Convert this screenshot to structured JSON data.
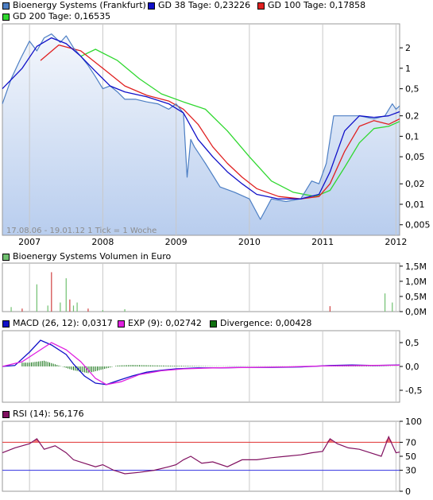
{
  "panels": {
    "price": {
      "legend": [
        {
          "label": "Bioenergy Systems (Frankfurt)",
          "color": "#4d7fc4"
        },
        {
          "label": "GD 38 Tage: 0,23226",
          "color": "#1010c8"
        },
        {
          "label": "GD 100 Tage: 0,17858",
          "color": "#e02020"
        },
        {
          "label": "GD 200 Tage: 0,16535",
          "color": "#30d830"
        }
      ],
      "y_ticks": [
        "2",
        "1",
        "0,5",
        "0,2",
        "0,1",
        "0,05",
        "0,02",
        "0,01",
        "0,005"
      ],
      "x_ticks": [
        "2007",
        "2008",
        "2009",
        "2010",
        "2011",
        "2012"
      ],
      "note": "17.08.06 - 19.01.12   1 Tick = 1 Woche"
    },
    "volume": {
      "legend": [
        {
          "label": "Bioenergy Systems Volumen in Euro",
          "color": "#70c070"
        }
      ],
      "y_ticks": [
        "1,5M",
        "1,0M",
        "0,5M",
        "0,0M"
      ]
    },
    "macd": {
      "legend": [
        {
          "label": "MACD (26, 12): 0,0317",
          "color": "#1010c8"
        },
        {
          "label": "EXP (9): 0,02742",
          "color": "#e020e0"
        },
        {
          "label": "Divergence: 0,00428",
          "color": "#107010"
        }
      ],
      "y_ticks": [
        "0,5",
        "0,0",
        "-0,5"
      ]
    },
    "rsi": {
      "legend": [
        {
          "label": "RSI (14): 56,176",
          "color": "#801060"
        }
      ],
      "y_ticks": [
        "100",
        "70",
        "50",
        "30",
        "0"
      ]
    }
  },
  "chart_data": [
    {
      "type": "line",
      "title": "Bioenergy Systems (Frankfurt)",
      "y_scale": "log",
      "ylim": [
        0.0035,
        4.5
      ],
      "x_range": [
        "2006-08-17",
        "2012-01-19"
      ],
      "series": [
        {
          "name": "Bioenergy Systems (Frankfurt)",
          "x": [
            2006.63,
            2006.75,
            2006.88,
            2007.0,
            2007.1,
            2007.2,
            2007.3,
            2007.42,
            2007.5,
            2007.6,
            2007.7,
            2007.8,
            2007.9,
            2008.0,
            2008.1,
            2008.2,
            2008.3,
            2008.45,
            2008.6,
            2008.75,
            2008.9,
            2009.0,
            2009.1,
            2009.15,
            2009.2,
            2009.25,
            2009.4,
            2009.6,
            2009.8,
            2010.0,
            2010.15,
            2010.3,
            2010.5,
            2010.7,
            2010.85,
            2010.95,
            2011.05,
            2011.15,
            2011.3,
            2011.5,
            2011.7,
            2011.85,
            2011.95,
            2012.0,
            2012.05
          ],
          "y": [
            0.3,
            0.7,
            1.4,
            2.5,
            1.8,
            2.8,
            3.2,
            2.4,
            3.0,
            2.0,
            1.5,
            1.1,
            0.75,
            0.5,
            0.55,
            0.45,
            0.35,
            0.35,
            0.32,
            0.3,
            0.25,
            0.3,
            0.22,
            0.025,
            0.09,
            0.07,
            0.04,
            0.018,
            0.015,
            0.012,
            0.006,
            0.012,
            0.011,
            0.012,
            0.022,
            0.02,
            0.04,
            0.2,
            0.2,
            0.2,
            0.18,
            0.2,
            0.3,
            0.25,
            0.28
          ]
        },
        {
          "name": "GD 38 Tage: 0,23226",
          "x": [
            2006.63,
            2006.9,
            2007.1,
            2007.3,
            2007.5,
            2007.7,
            2007.9,
            2008.1,
            2008.3,
            2008.6,
            2008.9,
            2009.1,
            2009.3,
            2009.5,
            2009.7,
            2009.9,
            2010.1,
            2010.4,
            2010.7,
            2010.95,
            2011.1,
            2011.3,
            2011.5,
            2011.7,
            2011.9,
            2012.05
          ],
          "y": [
            0.5,
            1.0,
            2.1,
            2.8,
            2.3,
            1.5,
            0.9,
            0.55,
            0.45,
            0.38,
            0.3,
            0.22,
            0.09,
            0.05,
            0.03,
            0.02,
            0.014,
            0.012,
            0.012,
            0.014,
            0.03,
            0.12,
            0.2,
            0.19,
            0.2,
            0.23
          ]
        },
        {
          "name": "GD 100 Tage: 0,17858",
          "x": [
            2007.15,
            2007.4,
            2007.7,
            2008.0,
            2008.3,
            2008.6,
            2008.9,
            2009.1,
            2009.3,
            2009.5,
            2009.7,
            2009.9,
            2010.1,
            2010.4,
            2010.7,
            2010.95,
            2011.1,
            2011.3,
            2011.5,
            2011.7,
            2011.9,
            2012.05
          ],
          "y": [
            1.3,
            2.2,
            1.8,
            1.0,
            0.55,
            0.4,
            0.33,
            0.25,
            0.15,
            0.07,
            0.04,
            0.025,
            0.017,
            0.013,
            0.012,
            0.013,
            0.02,
            0.06,
            0.14,
            0.17,
            0.15,
            0.18
          ]
        },
        {
          "name": "GD 200 Tage: 0,16535",
          "x": [
            2007.7,
            2007.9,
            2008.2,
            2008.5,
            2008.8,
            2009.1,
            2009.4,
            2009.7,
            2010.0,
            2010.3,
            2010.6,
            2010.9,
            2011.1,
            2011.3,
            2011.5,
            2011.7,
            2011.9,
            2012.05
          ],
          "y": [
            1.5,
            1.9,
            1.3,
            0.7,
            0.42,
            0.32,
            0.25,
            0.12,
            0.05,
            0.022,
            0.015,
            0.013,
            0.016,
            0.035,
            0.08,
            0.13,
            0.14,
            0.165
          ]
        }
      ]
    },
    {
      "type": "bar",
      "title": "Bioenergy Systems Volumen in Euro",
      "unit": "M Euro",
      "ylim": [
        0,
        1.6
      ],
      "x": [
        2006.75,
        2006.9,
        2007.1,
        2007.25,
        2007.3,
        2007.42,
        2007.5,
        2007.55,
        2007.6,
        2007.65,
        2007.8,
        2008.0,
        2008.3,
        2011.1,
        2011.85,
        2011.95
      ],
      "values": [
        0.15,
        0.1,
        0.9,
        0.2,
        1.3,
        0.3,
        1.1,
        0.4,
        0.2,
        0.3,
        0.1,
        0.05,
        0.08,
        0.18,
        0.6,
        0.3
      ]
    },
    {
      "type": "line",
      "title": "MACD (26, 12) / EXP (9) / Divergence",
      "ylim": [
        -0.75,
        0.75
      ],
      "series": [
        {
          "name": "MACD (26, 12): 0,0317",
          "x": [
            2006.63,
            2006.8,
            2007.0,
            2007.15,
            2007.3,
            2007.5,
            2007.6,
            2007.75,
            2007.9,
            2008.05,
            2008.2,
            2008.4,
            2008.6,
            2008.8,
            2009.0,
            2009.3,
            2009.6,
            2009.9,
            2010.3,
            2010.7,
            2011.1,
            2011.4,
            2011.7,
            2012.05
          ],
          "y": [
            0.0,
            0.02,
            0.3,
            0.55,
            0.45,
            0.25,
            0.05,
            -0.2,
            -0.35,
            -0.38,
            -0.3,
            -0.2,
            -0.12,
            -0.08,
            -0.05,
            -0.03,
            -0.03,
            -0.02,
            -0.02,
            -0.01,
            0.02,
            0.03,
            0.02,
            0.032
          ]
        },
        {
          "name": "EXP (9): 0,02742",
          "x": [
            2006.63,
            2006.9,
            2007.1,
            2007.3,
            2007.5,
            2007.7,
            2007.9,
            2008.05,
            2008.25,
            2008.5,
            2008.8,
            2009.1,
            2009.5,
            2010.0,
            2010.5,
            2011.0,
            2011.5,
            2012.05
          ],
          "y": [
            0.0,
            0.1,
            0.3,
            0.5,
            0.35,
            0.1,
            -0.25,
            -0.38,
            -0.32,
            -0.17,
            -0.09,
            -0.05,
            -0.03,
            -0.02,
            -0.01,
            0.01,
            0.02,
            0.027
          ]
        },
        {
          "name": "Divergence: 0,00428",
          "x": [
            2007.0,
            2007.2,
            2007.4,
            2007.6,
            2007.8,
            2008.0,
            2008.2,
            2008.4,
            2008.8,
            2009.5,
            2010.5,
            2011.2,
            2012.05
          ],
          "y": [
            0.08,
            0.12,
            0.02,
            -0.08,
            -0.14,
            -0.06,
            0.02,
            0.03,
            0.02,
            0.005,
            0.003,
            0.01,
            0.004
          ]
        }
      ]
    },
    {
      "type": "line",
      "title": "RSI (14): 56,176",
      "ylim": [
        0,
        100
      ],
      "series": [
        {
          "name": "RSI (14): 56,176",
          "x": [
            2006.63,
            2006.8,
            2007.0,
            2007.1,
            2007.2,
            2007.35,
            2007.5,
            2007.6,
            2007.75,
            2007.9,
            2008.0,
            2008.15,
            2008.3,
            2008.5,
            2008.7,
            2008.9,
            2009.0,
            2009.1,
            2009.2,
            2009.35,
            2009.5,
            2009.7,
            2009.9,
            2010.1,
            2010.3,
            2010.5,
            2010.7,
            2010.85,
            2011.0,
            2011.1,
            2011.2,
            2011.35,
            2011.5,
            2011.65,
            2011.8,
            2011.9,
            2012.0,
            2012.05
          ],
          "y": [
            55,
            62,
            68,
            75,
            60,
            65,
            55,
            45,
            40,
            35,
            38,
            30,
            25,
            27,
            30,
            35,
            38,
            45,
            50,
            40,
            42,
            35,
            45,
            45,
            48,
            50,
            52,
            55,
            57,
            75,
            68,
            62,
            60,
            55,
            50,
            78,
            55,
            56
          ]
        }
      ],
      "reference_lines": [
        70,
        30
      ]
    }
  ]
}
